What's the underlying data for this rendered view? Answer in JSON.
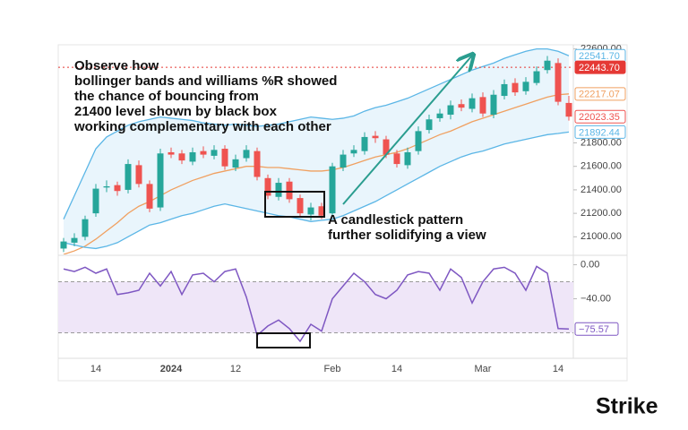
{
  "chart_data": {
    "type": "candlestick",
    "categories": [
      null,
      null,
      null,
      "14",
      null,
      null,
      null,
      null,
      null,
      null,
      "2024",
      null,
      null,
      null,
      null,
      null,
      "12",
      null,
      null,
      null,
      null,
      null,
      null,
      null,
      null,
      "Feb",
      null,
      null,
      null,
      null,
      null,
      "14",
      null,
      null,
      null,
      null,
      null,
      null,
      null,
      "Mar",
      null,
      null,
      null,
      null,
      null,
      null,
      "14",
      null
    ],
    "candles": {
      "open": [
        20900,
        20950,
        21000,
        21200,
        21420,
        21440,
        21400,
        21610,
        21450,
        21250,
        21720,
        21710,
        21640,
        21730,
        21690,
        21750,
        21590,
        21670,
        21730,
        21500,
        21340,
        21470,
        21330,
        21190,
        21260,
        21200,
        21590,
        21710,
        21730,
        21860,
        21830,
        21710,
        21610,
        21730,
        21910,
        22010,
        22040,
        22130,
        22090,
        22190,
        22040,
        22200,
        22310,
        22240,
        22310,
        22420,
        22480,
        22140
      ],
      "high": [
        20990,
        21030,
        21180,
        21450,
        21480,
        21470,
        21660,
        21650,
        21480,
        21750,
        21760,
        21740,
        21760,
        21770,
        21780,
        21780,
        21700,
        21780,
        21760,
        21530,
        21500,
        21500,
        21360,
        21290,
        21290,
        21630,
        21740,
        21780,
        21890,
        21900,
        21860,
        21740,
        21760,
        21940,
        22040,
        22090,
        22160,
        22170,
        22220,
        22230,
        22250,
        22340,
        22350,
        22360,
        22450,
        22540,
        22520,
        22200
      ],
      "low": [
        20870,
        20920,
        20970,
        21170,
        21380,
        21350,
        21370,
        21420,
        21210,
        21220,
        21670,
        21620,
        21610,
        21670,
        21660,
        21570,
        21560,
        21640,
        21480,
        21320,
        21310,
        21290,
        21170,
        21140,
        21150,
        21170,
        21560,
        21680,
        21700,
        21800,
        21670,
        21590,
        21580,
        21700,
        21880,
        21980,
        22000,
        22070,
        22060,
        22020,
        22010,
        22170,
        22200,
        22210,
        22290,
        22390,
        22120,
        21990
      ],
      "close": [
        20960,
        20990,
        21150,
        21410,
        21430,
        21390,
        21620,
        21450,
        21240,
        21710,
        21700,
        21650,
        21720,
        21700,
        21740,
        21600,
        21660,
        21740,
        21510,
        21350,
        21460,
        21320,
        21200,
        21250,
        21180,
        21600,
        21700,
        21740,
        21850,
        21840,
        21700,
        21620,
        21720,
        21900,
        22000,
        22050,
        22120,
        22100,
        22180,
        22050,
        22210,
        22300,
        22230,
        22320,
        22410,
        22500,
        22150,
        22023.35
      ],
      "up_color": "#26a69a",
      "down_color": "#ef5350",
      "last_label": "22023.35"
    },
    "bands": {
      "upper": {
        "color": "#5bb6e6",
        "value_label": "22541.70",
        "values": [
          21150,
          21350,
          21550,
          21750,
          21850,
          21900,
          21950,
          21980,
          22000,
          22020,
          22010,
          22000,
          21990,
          21970,
          21960,
          21950,
          21960,
          21950,
          21940,
          21950,
          21960,
          21980,
          22000,
          22020,
          22010,
          22000,
          22010,
          22030,
          22070,
          22100,
          22120,
          22150,
          22180,
          22220,
          22260,
          22300,
          22340,
          22380,
          22420,
          22450,
          22480,
          22520,
          22550,
          22580,
          22600,
          22600,
          22580,
          22541.7
        ]
      },
      "middle": {
        "color": "#f0a060",
        "value_label": "22217.07",
        "values": [
          20850,
          20880,
          20920,
          20980,
          21050,
          21120,
          21200,
          21260,
          21300,
          21350,
          21400,
          21440,
          21480,
          21510,
          21540,
          21560,
          21580,
          21600,
          21600,
          21590,
          21590,
          21580,
          21570,
          21560,
          21560,
          21570,
          21590,
          21620,
          21650,
          21680,
          21700,
          21720,
          21750,
          21790,
          21830,
          21870,
          21900,
          21940,
          21980,
          22010,
          22040,
          22070,
          22100,
          22130,
          22160,
          22190,
          22210,
          22217.07
        ]
      },
      "lower": {
        "color": "#5bb6e6",
        "value_label": "21892.44",
        "values": [
          20950,
          20930,
          20910,
          20900,
          20920,
          20950,
          21000,
          21050,
          21100,
          21120,
          21150,
          21180,
          21200,
          21230,
          21260,
          21280,
          21260,
          21240,
          21220,
          21200,
          21180,
          21170,
          21150,
          21130,
          21140,
          21150,
          21180,
          21220,
          21260,
          21300,
          21350,
          21400,
          21450,
          21500,
          21550,
          21600,
          21640,
          21680,
          21710,
          21730,
          21760,
          21790,
          21810,
          21830,
          21850,
          21870,
          21880,
          21892.44
        ]
      }
    },
    "price_line": {
      "value": 22443.7,
      "label": "22443.70",
      "color": "#e53935"
    },
    "ylim": [
      20850,
      22620
    ],
    "yticks": [
      {
        "value": 21000,
        "label": "21000.00"
      },
      {
        "value": 21200,
        "label": "21200.00"
      },
      {
        "value": 21400,
        "label": "21400.00"
      },
      {
        "value": 21600,
        "label": "21600.00"
      },
      {
        "value": 21800,
        "label": "21800.00"
      },
      {
        "value": 22600,
        "label": "22600.00"
      }
    ],
    "indicator": {
      "type": "line",
      "color": "#7e57c2",
      "values": [
        -5,
        -8,
        -3,
        -10,
        -5,
        -35,
        -33,
        -30,
        -10,
        -25,
        -8,
        -35,
        -12,
        -10,
        -20,
        -8,
        -5,
        -38,
        -83,
        -72,
        -65,
        -75,
        -90,
        -70,
        -78,
        -40,
        -25,
        -10,
        -20,
        -35,
        -40,
        -30,
        -12,
        -8,
        -10,
        -30,
        -5,
        -15,
        -45,
        -20,
        -5,
        -3,
        -10,
        -30,
        -2,
        -10,
        -75,
        -75.57
      ],
      "value_label": "−75.57",
      "levels": [
        -20,
        -80
      ],
      "ylim": [
        -110,
        10
      ],
      "yticks": [
        {
          "value": 0,
          "label": "0.00"
        },
        {
          "value": -40,
          "label": "−40.00"
        }
      ]
    },
    "annotations": {
      "note": [
        "Observe how",
        "bollinger bands and williams %R showed",
        "the chance of bouncing from",
        "21400 level shown by black box",
        "working complementary with each other"
      ],
      "pattern_note": [
        "A candlestick pattern",
        "further solidifying a view"
      ]
    }
  },
  "logo": "Strike"
}
